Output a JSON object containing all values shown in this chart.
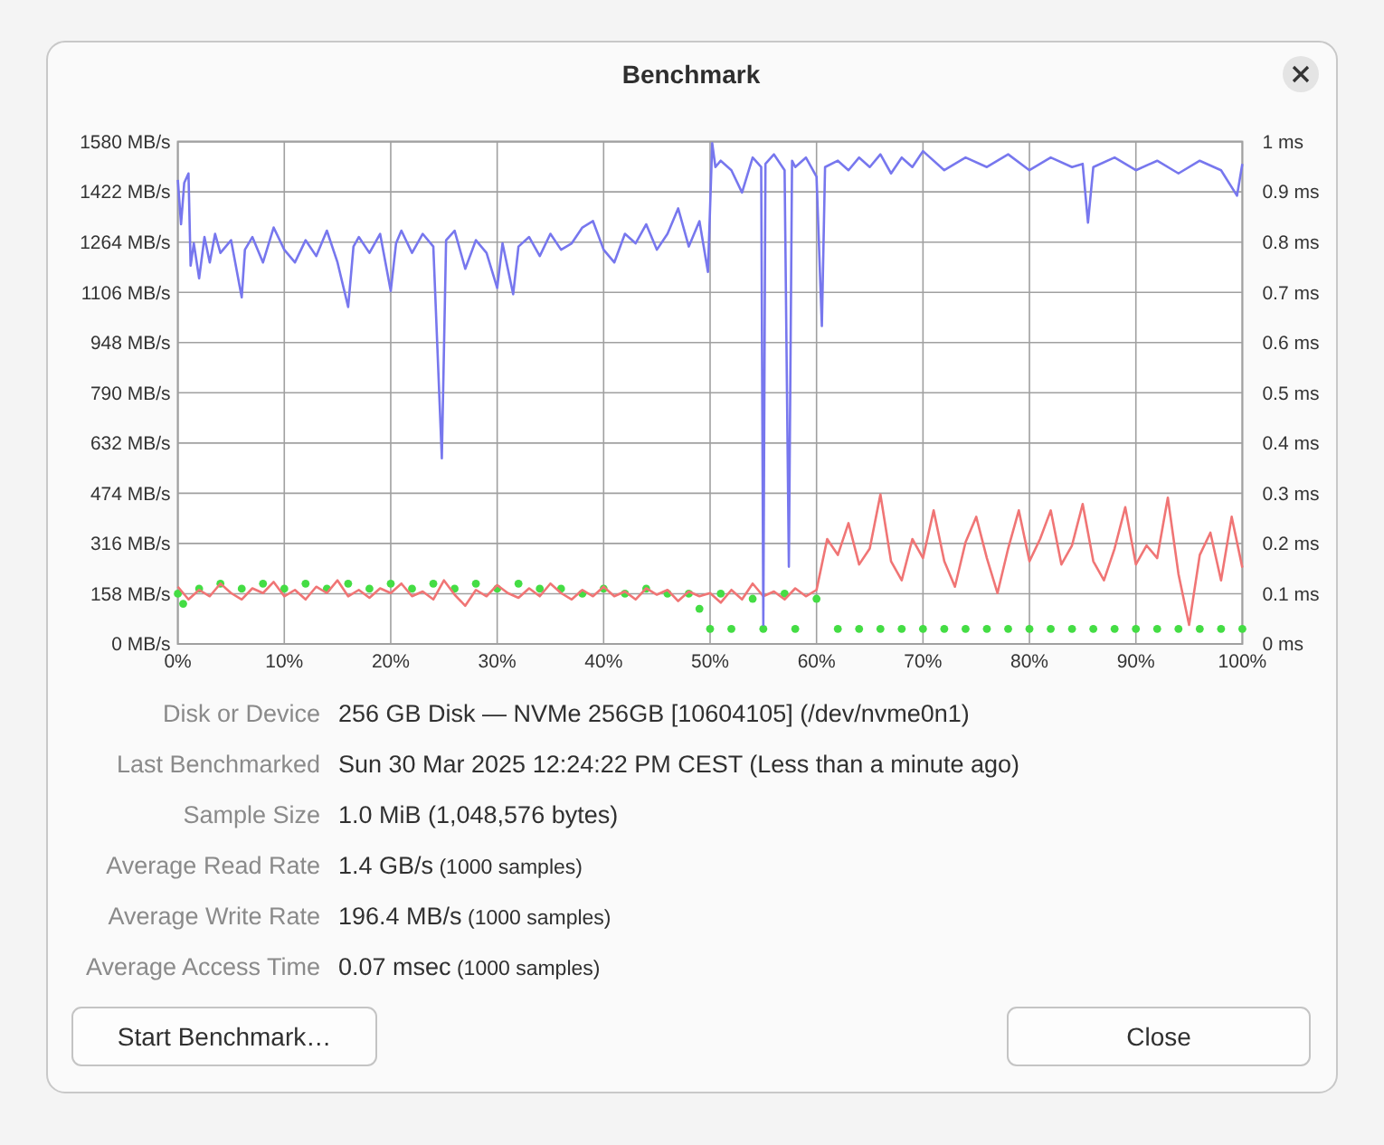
{
  "chart_data": {
    "type": "line",
    "title": "Benchmark",
    "xlim": [
      0,
      100
    ],
    "xticks": [
      {
        "value": 0,
        "label": "0%"
      },
      {
        "value": 10,
        "label": "10%"
      },
      {
        "value": 20,
        "label": "20%"
      },
      {
        "value": 30,
        "label": "30%"
      },
      {
        "value": 40,
        "label": "40%"
      },
      {
        "value": 50,
        "label": "50%"
      },
      {
        "value": 60,
        "label": "60%"
      },
      {
        "value": 70,
        "label": "70%"
      },
      {
        "value": 80,
        "label": "80%"
      },
      {
        "value": 90,
        "label": "90%"
      },
      {
        "value": 100,
        "label": "100%"
      }
    ],
    "ylim": [
      0,
      1580
    ],
    "yticks": [
      {
        "value": 0,
        "label": "0 MB/s"
      },
      {
        "value": 158,
        "label": "158 MB/s"
      },
      {
        "value": 316,
        "label": "316 MB/s"
      },
      {
        "value": 474,
        "label": "474 MB/s"
      },
      {
        "value": 632,
        "label": "632 MB/s"
      },
      {
        "value": 790,
        "label": "790 MB/s"
      },
      {
        "value": 948,
        "label": "948 MB/s"
      },
      {
        "value": 1106,
        "label": "1106 MB/s"
      },
      {
        "value": 1264,
        "label": "1264 MB/s"
      },
      {
        "value": 1422,
        "label": "1422 MB/s"
      },
      {
        "value": 1580,
        "label": "1580 MB/s"
      }
    ],
    "y2lim": [
      0,
      1
    ],
    "y2ticks": [
      {
        "value": 0,
        "label": "0 ms"
      },
      {
        "value": 0.1,
        "label": "0.1 ms"
      },
      {
        "value": 0.2,
        "label": "0.2 ms"
      },
      {
        "value": 0.3,
        "label": "0.3 ms"
      },
      {
        "value": 0.4,
        "label": "0.4 ms"
      },
      {
        "value": 0.5,
        "label": "0.5 ms"
      },
      {
        "value": 0.6,
        "label": "0.6 ms"
      },
      {
        "value": 0.7,
        "label": "0.7 ms"
      },
      {
        "value": 0.8,
        "label": "0.8 ms"
      },
      {
        "value": 0.9,
        "label": "0.9 ms"
      },
      {
        "value": 1,
        "label": "1 ms"
      }
    ],
    "grid": true,
    "series": [
      {
        "type": "scatter",
        "axis": "y2",
        "marker": "circle",
        "color": "#44dd44",
        "x": [
          0,
          0.5,
          2,
          4,
          6,
          8,
          10,
          12,
          14,
          16,
          18,
          20,
          22,
          24,
          26,
          28,
          30,
          32,
          34,
          36,
          38,
          40,
          42,
          44,
          46,
          48,
          49,
          50,
          51,
          52,
          54,
          55,
          57,
          58,
          60,
          62,
          64,
          66,
          68,
          70,
          72,
          74,
          76,
          78,
          80,
          82,
          84,
          86,
          88,
          90,
          92,
          94,
          96,
          98,
          100
        ],
        "values": [
          0.1,
          0.08,
          0.11,
          0.12,
          0.11,
          0.12,
          0.11,
          0.12,
          0.11,
          0.12,
          0.11,
          0.12,
          0.11,
          0.12,
          0.11,
          0.12,
          0.11,
          0.12,
          0.11,
          0.11,
          0.1,
          0.11,
          0.1,
          0.11,
          0.1,
          0.1,
          0.07,
          0.03,
          0.1,
          0.03,
          0.09,
          0.03,
          0.1,
          0.03,
          0.09,
          0.03,
          0.03,
          0.03,
          0.03,
          0.03,
          0.03,
          0.03,
          0.03,
          0.03,
          0.03,
          0.03,
          0.03,
          0.03,
          0.03,
          0.03,
          0.03,
          0.03,
          0.03,
          0.03,
          0.03
        ]
      },
      {
        "color": "#f07575",
        "x": [
          0,
          1,
          2,
          3,
          4,
          5,
          6,
          7,
          8,
          9,
          10,
          11,
          12,
          13,
          14,
          15,
          16,
          17,
          18,
          19,
          20,
          21,
          22,
          23,
          24,
          25,
          26,
          27,
          28,
          29,
          30,
          31,
          32,
          33,
          34,
          35,
          36,
          37,
          38,
          39,
          40,
          41,
          42,
          43,
          44,
          45,
          46,
          47,
          48,
          49,
          50,
          51,
          52,
          53,
          54,
          55,
          56,
          57,
          58,
          59,
          60,
          60.5,
          61,
          62,
          63,
          64,
          65,
          66,
          67,
          68,
          69,
          70,
          71,
          72,
          73,
          74,
          75,
          76,
          77,
          78,
          79,
          80,
          81,
          82,
          83,
          84,
          85,
          86,
          87,
          88,
          89,
          90,
          91,
          92,
          93,
          94,
          95,
          96,
          97,
          98,
          99,
          100
        ],
        "values": [
          180,
          140,
          170,
          150,
          190,
          160,
          140,
          175,
          160,
          195,
          150,
          170,
          140,
          180,
          160,
          200,
          150,
          170,
          145,
          175,
          160,
          190,
          150,
          165,
          140,
          200,
          155,
          120,
          170,
          150,
          185,
          160,
          145,
          175,
          150,
          190,
          160,
          140,
          170,
          150,
          180,
          150,
          165,
          140,
          175,
          155,
          170,
          135,
          165,
          150,
          160,
          130,
          170,
          140,
          190,
          150,
          165,
          140,
          175,
          150,
          170,
          250,
          330,
          280,
          380,
          250,
          300,
          470,
          260,
          200,
          330,
          270,
          420,
          260,
          180,
          320,
          400,
          270,
          160,
          300,
          420,
          260,
          330,
          420,
          250,
          310,
          440,
          260,
          200,
          300,
          430,
          250,
          310,
          270,
          460,
          220,
          60,
          280,
          350,
          200,
          400,
          240
        ]
      },
      {
        "color": "#7777ee",
        "x": [
          0,
          0.3,
          0.6,
          1,
          1.2,
          1.5,
          2,
          2.5,
          3,
          3.5,
          4,
          5,
          6,
          6.3,
          7,
          8,
          9,
          10,
          11,
          12,
          13,
          14,
          15,
          16,
          16.5,
          17,
          18,
          19,
          20,
          20.5,
          21,
          22,
          23,
          24,
          24.8,
          25.2,
          26,
          27,
          28,
          29,
          30,
          30.5,
          31.5,
          32,
          33,
          34,
          35,
          36,
          37,
          38,
          39,
          40,
          41,
          42,
          43,
          44,
          45,
          46,
          47,
          48,
          49,
          49.8,
          50.2,
          50.5,
          51,
          52,
          53,
          54,
          54.8,
          55,
          55.2,
          56,
          57,
          57.4,
          57.7,
          58,
          59,
          60,
          60.5,
          60.8,
          62,
          63,
          64,
          65,
          66,
          67,
          68,
          69,
          70,
          72,
          74,
          76,
          78,
          80,
          82,
          84,
          85,
          85.5,
          86,
          88,
          90,
          92,
          94,
          96,
          98,
          99.5,
          100
        ],
        "values": [
          1460,
          1320,
          1450,
          1480,
          1190,
          1260,
          1150,
          1280,
          1200,
          1290,
          1230,
          1270,
          1090,
          1240,
          1280,
          1200,
          1310,
          1240,
          1200,
          1270,
          1220,
          1300,
          1200,
          1060,
          1250,
          1280,
          1230,
          1290,
          1110,
          1260,
          1300,
          1230,
          1290,
          1250,
          584,
          1270,
          1300,
          1180,
          1270,
          1230,
          1120,
          1260,
          1100,
          1250,
          1280,
          1220,
          1290,
          1240,
          1260,
          1310,
          1330,
          1240,
          1200,
          1290,
          1260,
          1320,
          1240,
          1290,
          1370,
          1250,
          1330,
          1170,
          1575,
          1500,
          1520,
          1490,
          1420,
          1530,
          1500,
          60,
          1510,
          1540,
          1490,
          243,
          1520,
          1500,
          1530,
          1470,
          1000,
          1500,
          1520,
          1490,
          1530,
          1500,
          1540,
          1480,
          1530,
          1500,
          1550,
          1490,
          1530,
          1500,
          1540,
          1490,
          1530,
          1500,
          1510,
          1325,
          1500,
          1530,
          1490,
          1520,
          1480,
          1520,
          1490,
          1410,
          1510
        ]
      }
    ],
    "annotations": [
      "Disk or Device",
      "256 GB Disk — NVMe 256GB [10604105] (/dev/nvme0n1)",
      "Last Benchmarked",
      "Sun 30 Mar 2025 12:24:22 PM CEST (Less than a minute ago)",
      "Sample Size",
      "1.0 MiB (1,048,576 bytes)",
      "Average Read Rate",
      "1.4 GB/s",
      "Average Write Rate",
      "196.4 MB/s",
      "Average Access Time",
      "0.07 msec",
      "(1000 samples)",
      "(1000 samples)",
      "(1000 samples)",
      "Start Benchmark…",
      "Close"
    ]
  }
}
